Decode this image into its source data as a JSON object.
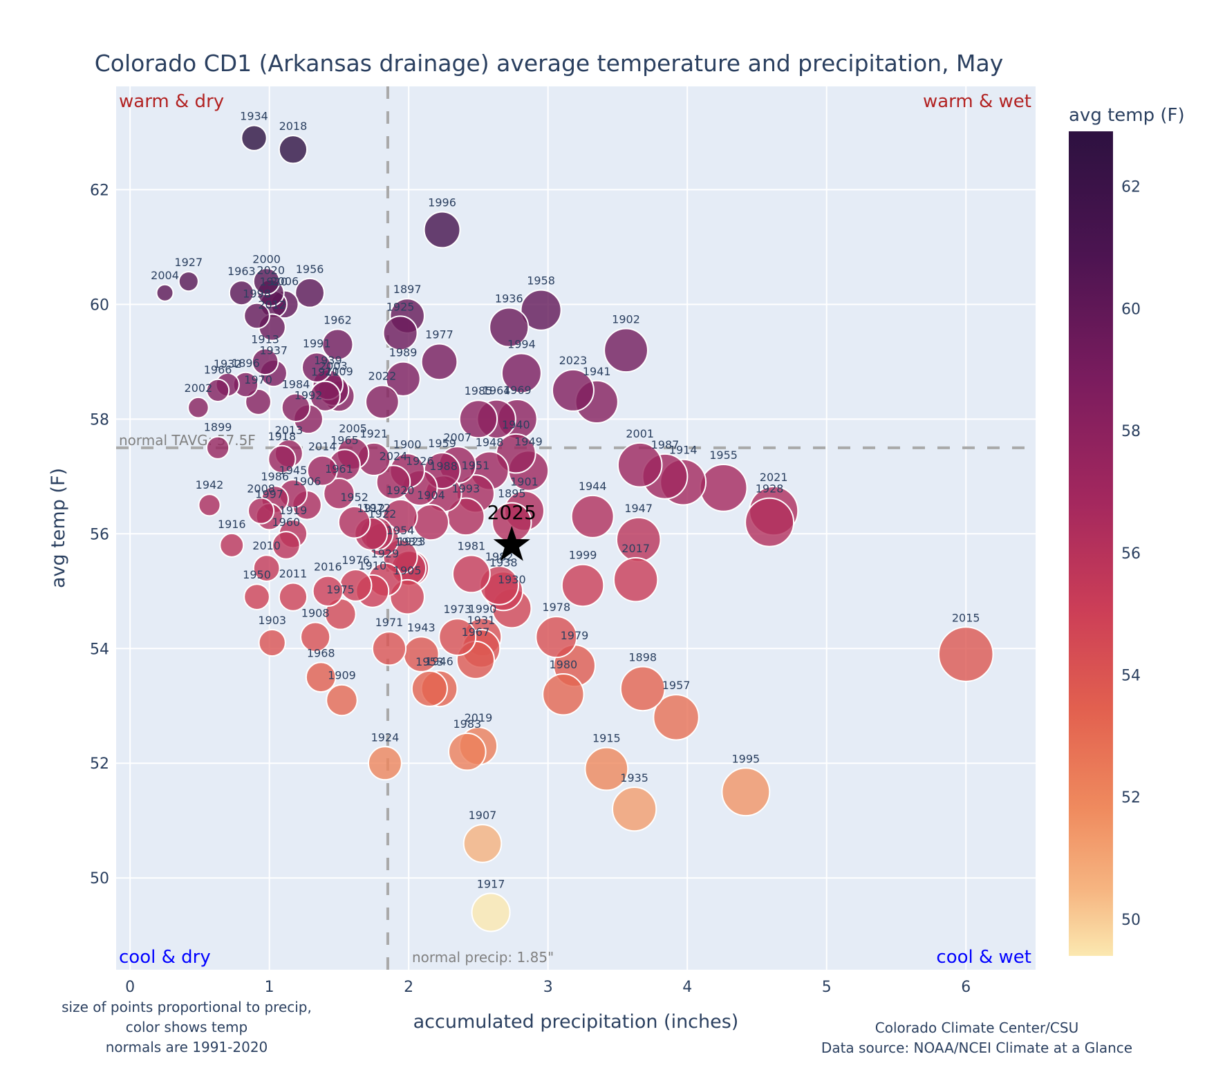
{
  "chart_data": {
    "type": "scatter",
    "title": "Colorado CD1 (Arkansas drainage) average temperature and precipitation, May",
    "xlabel": "accumulated precipitation (inches)",
    "ylabel": "avg temp (F)",
    "xlim": [
      -0.1,
      6.5
    ],
    "ylim": [
      48.4,
      63.8
    ],
    "xticks": [
      0,
      1,
      2,
      3,
      4,
      5,
      6
    ],
    "yticks": [
      50,
      52,
      54,
      56,
      58,
      60,
      62
    ],
    "grid": true,
    "colorbar": {
      "title": "avg temp (F)",
      "range": [
        49.4,
        62.9
      ],
      "ticks": [
        50,
        52,
        54,
        56,
        58,
        60,
        62
      ],
      "colorscale": "magma-reversed",
      "placement": "right"
    },
    "size_encoding": "precipitation",
    "color_encoding": "temperature",
    "normal_precip": 1.85,
    "normal_temp": 57.5,
    "normal_precip_label": "normal precip: 1.85\"",
    "normal_temp_label": "normal TAVG: 57.5F",
    "quadrant_labels": {
      "top_left": "warm & dry",
      "top_right": "warm & wet",
      "bottom_left": "cool & dry",
      "bottom_right": "cool & wet"
    },
    "highlight": {
      "label": "2025",
      "precip": 2.74,
      "temp": 55.8,
      "marker": "star"
    },
    "points": [
      {
        "year": "1934",
        "precip": 0.89,
        "temp": 62.9
      },
      {
        "year": "2018",
        "precip": 1.17,
        "temp": 62.7
      },
      {
        "year": "1996",
        "precip": 2.24,
        "temp": 61.3
      },
      {
        "year": "1927",
        "precip": 0.42,
        "temp": 60.4
      },
      {
        "year": "2004",
        "precip": 0.25,
        "temp": 60.2
      },
      {
        "year": "1963",
        "precip": 0.8,
        "temp": 60.2
      },
      {
        "year": "2000",
        "precip": 0.98,
        "temp": 60.4
      },
      {
        "year": "2020",
        "precip": 1.01,
        "temp": 60.2
      },
      {
        "year": "1920",
        "precip": 1.03,
        "temp": 60.0
      },
      {
        "year": "2006",
        "precip": 1.11,
        "temp": 60.0
      },
      {
        "year": "1956",
        "precip": 1.29,
        "temp": 60.2
      },
      {
        "year": "1998",
        "precip": 0.91,
        "temp": 59.8
      },
      {
        "year": "2012",
        "precip": 1.02,
        "temp": 59.6
      },
      {
        "year": "1958",
        "precip": 2.95,
        "temp": 59.9
      },
      {
        "year": "1897",
        "precip": 1.99,
        "temp": 59.8
      },
      {
        "year": "1925",
        "precip": 1.94,
        "temp": 59.5
      },
      {
        "year": "1936",
        "precip": 2.72,
        "temp": 59.6
      },
      {
        "year": "1962",
        "precip": 1.49,
        "temp": 59.3
      },
      {
        "year": "1902",
        "precip": 3.56,
        "temp": 59.2
      },
      {
        "year": "1977",
        "precip": 2.22,
        "temp": 59.0
      },
      {
        "year": "1994",
        "precip": 2.81,
        "temp": 58.8
      },
      {
        "year": "1913",
        "precip": 0.97,
        "temp": 59.0
      },
      {
        "year": "1937",
        "precip": 1.03,
        "temp": 58.8
      },
      {
        "year": "1991",
        "precip": 1.34,
        "temp": 58.9
      },
      {
        "year": "1939",
        "precip": 1.42,
        "temp": 58.6
      },
      {
        "year": "2003",
        "precip": 1.46,
        "temp": 58.5
      },
      {
        "year": "1911",
        "precip": 1.4,
        "temp": 58.4
      },
      {
        "year": "2009",
        "precip": 1.5,
        "temp": 58.4
      },
      {
        "year": "1989",
        "precip": 1.96,
        "temp": 58.7
      },
      {
        "year": "2022",
        "precip": 1.81,
        "temp": 58.3
      },
      {
        "year": "2023",
        "precip": 3.18,
        "temp": 58.5
      },
      {
        "year": "1941",
        "precip": 3.35,
        "temp": 58.3
      },
      {
        "year": "1932",
        "precip": 0.7,
        "temp": 58.6
      },
      {
        "year": "1896",
        "precip": 0.83,
        "temp": 58.6
      },
      {
        "year": "1966",
        "precip": 0.63,
        "temp": 58.5
      },
      {
        "year": "1970",
        "precip": 0.92,
        "temp": 58.3
      },
      {
        "year": "2002",
        "precip": 0.49,
        "temp": 58.2
      },
      {
        "year": "1984",
        "precip": 1.19,
        "temp": 58.2
      },
      {
        "year": "1992",
        "precip": 1.28,
        "temp": 58.0
      },
      {
        "year": "1985",
        "precip": 2.5,
        "temp": 58.0
      },
      {
        "year": "1964",
        "precip": 2.63,
        "temp": 58.0
      },
      {
        "year": "1969",
        "precip": 2.78,
        "temp": 58.0
      },
      {
        "year": "1940",
        "precip": 2.77,
        "temp": 57.4
      },
      {
        "year": "1949",
        "precip": 2.86,
        "temp": 57.1
      },
      {
        "year": "1948",
        "precip": 2.58,
        "temp": 57.1
      },
      {
        "year": "2001",
        "precip": 3.66,
        "temp": 57.2
      },
      {
        "year": "1987",
        "precip": 3.84,
        "temp": 57.0
      },
      {
        "year": "1914",
        "precip": 3.97,
        "temp": 56.9
      },
      {
        "year": "1955",
        "precip": 4.26,
        "temp": 56.8
      },
      {
        "year": "2021",
        "precip": 4.62,
        "temp": 56.4
      },
      {
        "year": "1928",
        "precip": 4.59,
        "temp": 56.2
      },
      {
        "year": "1899",
        "precip": 0.63,
        "temp": 57.5
      },
      {
        "year": "2013",
        "precip": 1.14,
        "temp": 57.4
      },
      {
        "year": "1918",
        "precip": 1.09,
        "temp": 57.3
      },
      {
        "year": "2005",
        "precip": 1.6,
        "temp": 57.4
      },
      {
        "year": "1965",
        "precip": 1.54,
        "temp": 57.2
      },
      {
        "year": "1921",
        "precip": 1.75,
        "temp": 57.3
      },
      {
        "year": "2014",
        "precip": 1.38,
        "temp": 57.1
      },
      {
        "year": "1900",
        "precip": 1.99,
        "temp": 57.1
      },
      {
        "year": "1959",
        "precip": 2.24,
        "temp": 57.1
      },
      {
        "year": "2007",
        "precip": 2.35,
        "temp": 57.2
      },
      {
        "year": "2024",
        "precip": 1.89,
        "temp": 56.9
      },
      {
        "year": "1926",
        "precip": 2.08,
        "temp": 56.8
      },
      {
        "year": "1988",
        "precip": 2.25,
        "temp": 56.7
      },
      {
        "year": "1951",
        "precip": 2.48,
        "temp": 56.7
      },
      {
        "year": "1945",
        "precip": 1.17,
        "temp": 56.7
      },
      {
        "year": "1961",
        "precip": 1.5,
        "temp": 56.7
      },
      {
        "year": "1986",
        "precip": 1.04,
        "temp": 56.6
      },
      {
        "year": "1906",
        "precip": 1.27,
        "temp": 56.5
      },
      {
        "year": "1942",
        "precip": 0.57,
        "temp": 56.5
      },
      {
        "year": "2008",
        "precip": 0.94,
        "temp": 56.4
      },
      {
        "year": "1997",
        "precip": 1.0,
        "temp": 56.3
      },
      {
        "year": "1919",
        "precip": 1.17,
        "temp": 56.0
      },
      {
        "year": "1952",
        "precip": 1.61,
        "temp": 56.2
      },
      {
        "year": "1912",
        "precip": 1.73,
        "temp": 56.0
      },
      {
        "year": "1972",
        "precip": 1.77,
        "temp": 56.0
      },
      {
        "year": "1922",
        "precip": 1.81,
        "temp": 55.9
      },
      {
        "year": "1920b",
        "precip": 1.94,
        "temp": 56.3
      },
      {
        "year": "1904",
        "precip": 2.16,
        "temp": 56.2
      },
      {
        "year": "1993",
        "precip": 2.41,
        "temp": 56.3
      },
      {
        "year": "1901",
        "precip": 2.83,
        "temp": 56.4
      },
      {
        "year": "1895",
        "precip": 2.74,
        "temp": 56.2
      },
      {
        "year": "1944",
        "precip": 3.32,
        "temp": 56.3
      },
      {
        "year": "1947",
        "precip": 3.65,
        "temp": 55.9
      },
      {
        "year": "1916",
        "precip": 0.73,
        "temp": 55.8
      },
      {
        "year": "1960",
        "precip": 1.12,
        "temp": 55.8
      },
      {
        "year": "2010",
        "precip": 0.98,
        "temp": 55.4
      },
      {
        "year": "1954",
        "precip": 1.94,
        "temp": 55.6
      },
      {
        "year": "1923",
        "precip": 2.02,
        "temp": 55.4
      },
      {
        "year": "1933",
        "precip": 2.0,
        "temp": 55.4
      },
      {
        "year": "1929",
        "precip": 1.83,
        "temp": 55.2
      },
      {
        "year": "1981",
        "precip": 2.45,
        "temp": 55.3
      },
      {
        "year": "1982",
        "precip": 2.65,
        "temp": 55.1
      },
      {
        "year": "1938",
        "precip": 2.68,
        "temp": 55.0
      },
      {
        "year": "1930",
        "precip": 2.74,
        "temp": 54.7
      },
      {
        "year": "1999",
        "precip": 3.25,
        "temp": 55.1
      },
      {
        "year": "2017",
        "precip": 3.63,
        "temp": 55.2
      },
      {
        "year": "1950",
        "precip": 0.91,
        "temp": 54.9
      },
      {
        "year": "2011",
        "precip": 1.17,
        "temp": 54.9
      },
      {
        "year": "2016",
        "precip": 1.42,
        "temp": 55.0
      },
      {
        "year": "1976",
        "precip": 1.62,
        "temp": 55.1
      },
      {
        "year": "1910",
        "precip": 1.74,
        "temp": 55.0
      },
      {
        "year": "1905",
        "precip": 1.99,
        "temp": 54.9
      },
      {
        "year": "1975",
        "precip": 1.51,
        "temp": 54.6
      },
      {
        "year": "1908",
        "precip": 1.33,
        "temp": 54.2
      },
      {
        "year": "1903",
        "precip": 1.02,
        "temp": 54.1
      },
      {
        "year": "1971",
        "precip": 1.86,
        "temp": 54.0
      },
      {
        "year": "1943",
        "precip": 2.09,
        "temp": 53.9
      },
      {
        "year": "1973",
        "precip": 2.35,
        "temp": 54.2
      },
      {
        "year": "1990",
        "precip": 2.53,
        "temp": 54.2
      },
      {
        "year": "1931",
        "precip": 2.52,
        "temp": 54.0
      },
      {
        "year": "1967",
        "precip": 2.48,
        "temp": 53.8
      },
      {
        "year": "1978",
        "precip": 3.06,
        "temp": 54.2
      },
      {
        "year": "1979",
        "precip": 3.19,
        "temp": 53.7
      },
      {
        "year": "1968",
        "precip": 1.37,
        "temp": 53.5
      },
      {
        "year": "1953",
        "precip": 2.15,
        "temp": 53.3
      },
      {
        "year": "1946",
        "precip": 2.22,
        "temp": 53.3
      },
      {
        "year": "1980",
        "precip": 3.11,
        "temp": 53.2
      },
      {
        "year": "1898",
        "precip": 3.68,
        "temp": 53.3
      },
      {
        "year": "1909",
        "precip": 1.52,
        "temp": 53.1
      },
      {
        "year": "1957",
        "precip": 3.92,
        "temp": 52.8
      },
      {
        "year": "2015",
        "precip": 6.0,
        "temp": 53.9
      },
      {
        "year": "1924",
        "precip": 1.83,
        "temp": 52.0
      },
      {
        "year": "1983",
        "precip": 2.42,
        "temp": 52.2
      },
      {
        "year": "2019",
        "precip": 2.5,
        "temp": 52.3
      },
      {
        "year": "1915",
        "precip": 3.42,
        "temp": 51.9
      },
      {
        "year": "1935",
        "precip": 3.62,
        "temp": 51.2
      },
      {
        "year": "1995",
        "precip": 4.42,
        "temp": 51.5
      },
      {
        "year": "1907",
        "precip": 2.53,
        "temp": 50.6
      },
      {
        "year": "1917",
        "precip": 2.59,
        "temp": 49.4
      }
    ],
    "footnote_left": [
      "size of points proportional to precip,",
      "color shows temp",
      "normals are 1991-2020"
    ],
    "footnote_right": [
      "Colorado Climate Center/CSU",
      "Data source: NOAA/NCEI Climate at a Glance"
    ]
  }
}
